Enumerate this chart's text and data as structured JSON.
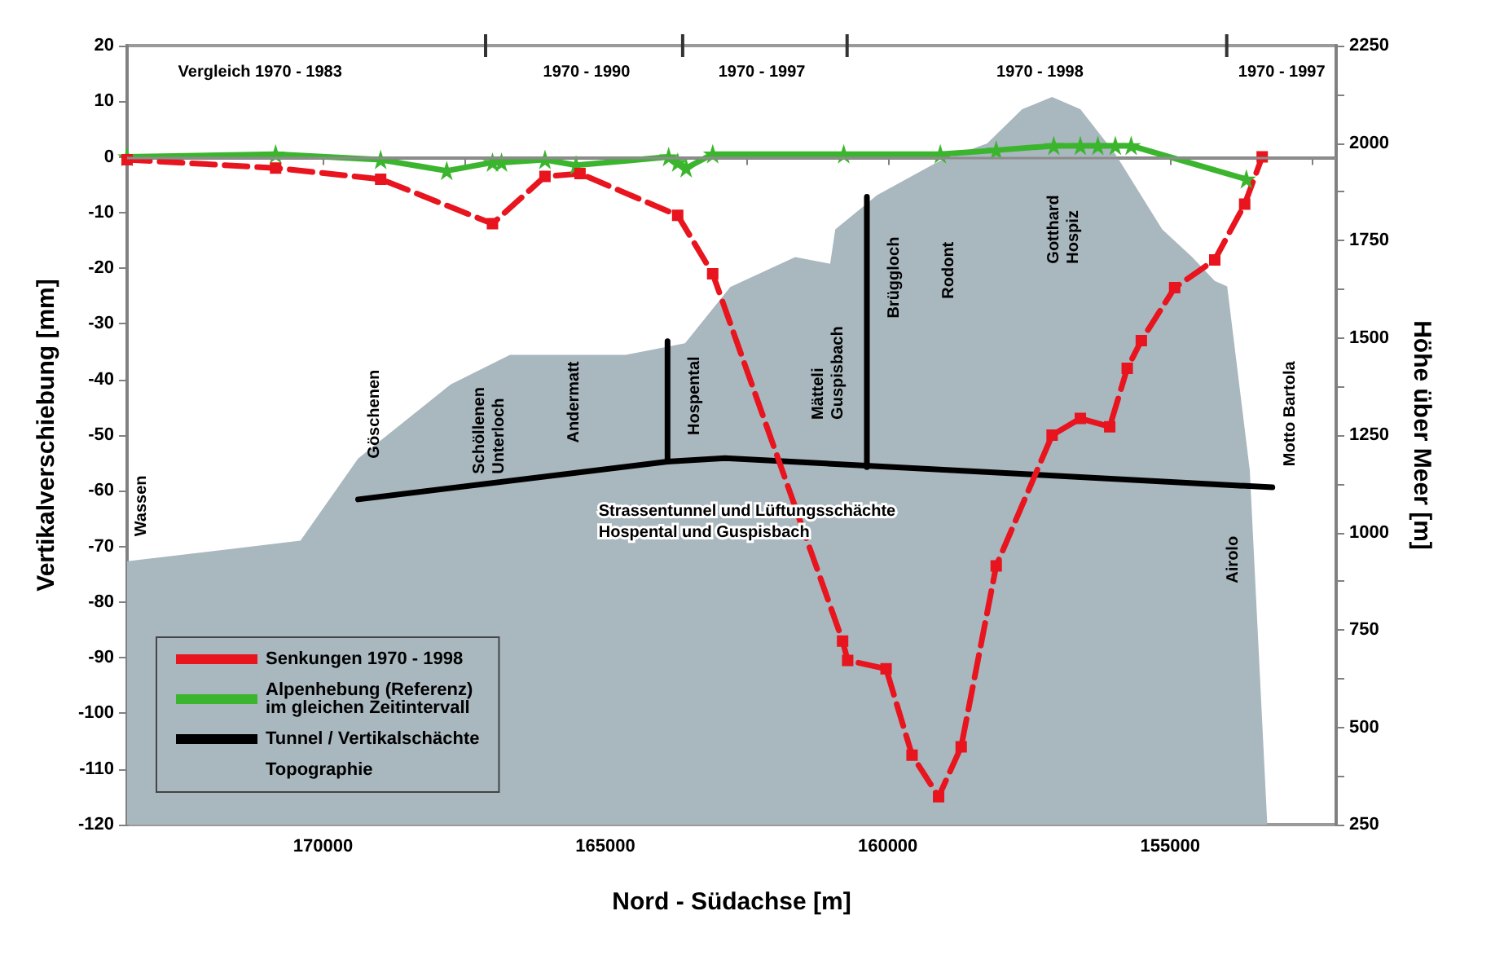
{
  "chart_data": {
    "type": "line",
    "xlabel": "Nord - Südachse [m]",
    "ylabel": "Vertikalverschiebung [mm]",
    "y2label": "Höhe über Meer [m]",
    "xlim": [
      173470,
      152060
    ],
    "xticks": [
      {
        "value": 172500,
        "label": null
      },
      170000,
      {
        "value": 167500,
        "label": null
      },
      165000,
      {
        "value": 162500,
        "label": null
      },
      160000,
      {
        "value": 157500,
        "label": null
      },
      155000,
      {
        "value": 152500,
        "label": null
      }
    ],
    "ylim": [
      -120,
      20
    ],
    "yticks": [
      -120,
      -110,
      -100,
      -90,
      -80,
      -70,
      -60,
      -50,
      -40,
      -30,
      -20,
      -10,
      0,
      10,
      20
    ],
    "y2lim": [
      250,
      2250
    ],
    "y2ticks": [
      250,
      {
        "value": 375,
        "label": null
      },
      500,
      {
        "value": 625,
        "label": null
      },
      750,
      {
        "value": 875,
        "label": null
      },
      1000,
      {
        "value": 1125,
        "label": null
      },
      1250,
      {
        "value": 1375,
        "label": null
      },
      1500,
      {
        "value": 1625,
        "label": null
      },
      1750,
      {
        "value": 1875,
        "label": null
      },
      2000,
      {
        "value": 2125,
        "label": null
      },
      2250
    ],
    "grid": false,
    "legend": "bottom left",
    "series": [
      {
        "name": "Topographie",
        "type": "area",
        "axis": "y2",
        "color": "#a9b7bf",
        "marker": "none",
        "x": [
          173470,
          170400,
          169380,
          167740,
          166690,
          164640,
          163590,
          162790,
          161640,
          161020,
          160930,
          160190,
          159070,
          158240,
          157620,
          157090,
          156590,
          155970,
          155140,
          154610,
          154210,
          153990,
          153590,
          153280
        ],
        "values": [
          926,
          979,
          1190,
          1380,
          1456,
          1456,
          1486,
          1630,
          1707,
          1690,
          1778,
          1866,
          1955,
          1999,
          2087,
          2118,
          2087,
          1972,
          1778,
          1707,
          1646,
          1632,
          1160,
          250
        ]
      },
      {
        "name": "Tunnel / Vertikalschächte",
        "axis": "y2",
        "color": "#000000",
        "marker": "none",
        "line_style": "solid",
        "x": [
          169380,
          163900,
          162880,
          153190
        ],
        "values": [
          1085,
          1182,
          1191,
          1116
        ]
      },
      {
        "axis": "y2",
        "color": "#000000",
        "marker": "none",
        "line_style": "solid",
        "x": [
          163900,
          163900
        ],
        "values": [
          1182,
          1491
        ]
      },
      {
        "axis": "y2",
        "color": "#000000",
        "marker": "none",
        "line_style": "solid",
        "x": [
          160370,
          160370
        ],
        "values": [
          1168,
          1862
        ]
      },
      {
        "name": "Alpenhebung (Referenz)\nim gleichen Zeitintervall",
        "color": "#3cb52e",
        "marker": "star",
        "line_style": "solid",
        "x": [
          173470,
          170840,
          168980,
          167810,
          167000,
          166840,
          166070,
          165520,
          163880,
          163720,
          163570,
          163100,
          160780,
          159070,
          158080,
          157060,
          156590,
          156280,
          155970,
          155690,
          153650
        ],
        "values": [
          0,
          0.5,
          -0.5,
          -2.5,
          -1,
          -1,
          -0.5,
          -1.5,
          0,
          -1,
          -2,
          0.5,
          0.5,
          0.5,
          1.2,
          2,
          2,
          2,
          2,
          2,
          -4
        ]
      },
      {
        "name": "Senkungen 1970 - 1998",
        "color": "#e8141e",
        "marker": "square",
        "line_style": "dashed",
        "x": [
          173470,
          170840,
          168980,
          167000,
          166070,
          165450,
          163720,
          163100,
          160800,
          160710,
          160030,
          159570,
          159100,
          158700,
          158080,
          157090,
          156590,
          156070,
          155760,
          155510,
          154920,
          154210,
          153680,
          153370
        ],
        "values": [
          -0.5,
          -2,
          -4,
          -12,
          -3.5,
          -3,
          -10.5,
          -21,
          -87,
          -90.5,
          -92,
          -107.5,
          -115,
          -106,
          -73.5,
          -50,
          -47,
          -48.5,
          -38,
          -33,
          -23.5,
          -18.5,
          -8.5,
          0
        ]
      }
    ],
    "ref_lines": [
      {
        "axis": "y",
        "value": 0,
        "color": "#8c8c8c"
      }
    ],
    "annotations": [
      "Vergleich 1970 - 1983",
      "1970 - 1990",
      "1970 - 1997",
      "1970 - 1998",
      "1970 - 1997",
      "Wassen",
      "Göschenen",
      "Schöllenen\nUnterloch",
      "Andermatt",
      "Hospental",
      "Mätteli\nGuspisbach",
      "Brüggloch",
      "Rodont",
      "Gotthard\nHospiz",
      "Airolo",
      "Motto Bartola",
      "Strassentunnel und Lüftungsschächte Hospental und Guspisbach"
    ]
  }
}
